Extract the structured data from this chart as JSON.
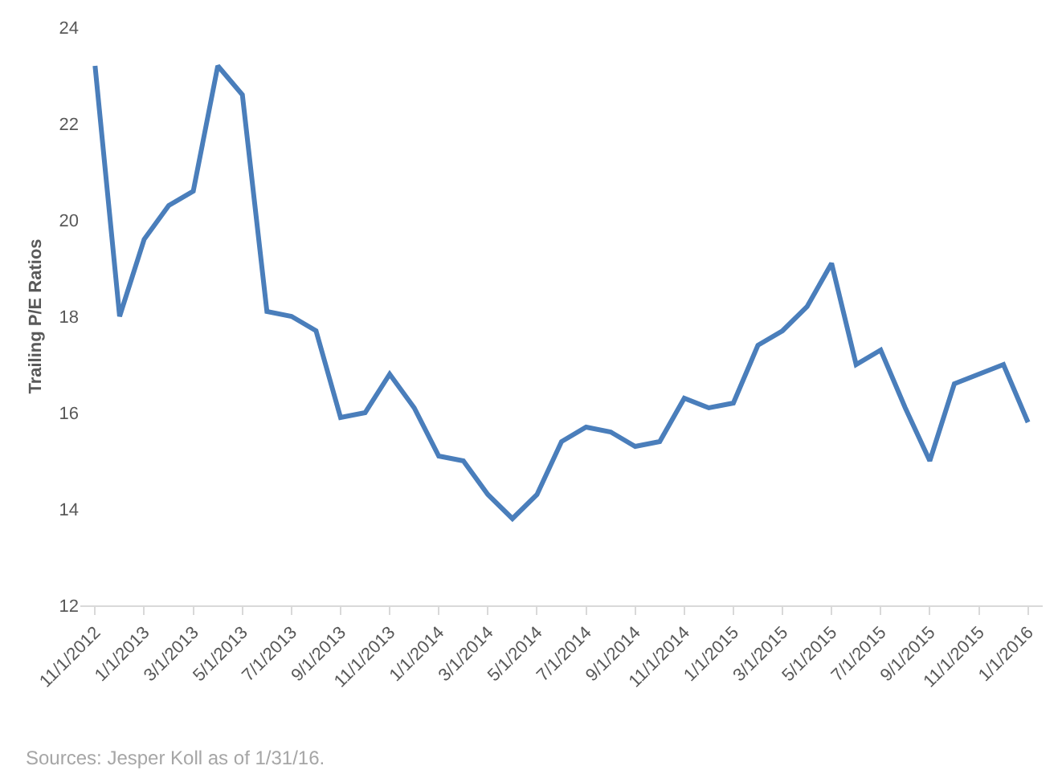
{
  "chart_data": {
    "type": "line",
    "ylabel": "Trailing P/E Ratios",
    "categories": [
      "11/1/2012",
      null,
      "1/1/2013",
      null,
      "3/1/2013",
      null,
      "5/1/2013",
      null,
      "7/1/2013",
      null,
      "9/1/2013",
      null,
      "11/1/2013",
      null,
      "1/1/2014",
      null,
      "3/1/2014",
      null,
      "5/1/2014",
      null,
      "7/1/2014",
      null,
      "9/1/2014",
      null,
      "11/1/2014",
      null,
      "1/1/2015",
      null,
      "3/1/2015",
      null,
      "5/1/2015",
      null,
      "7/1/2015",
      null,
      "9/1/2015",
      null,
      "11/1/2015",
      null,
      "1/1/2016"
    ],
    "series": [
      {
        "color": "#4a7ebb",
        "values": [
          23.2,
          18.0,
          19.6,
          20.3,
          20.6,
          23.2,
          22.6,
          18.1,
          18.0,
          17.7,
          15.9,
          16.0,
          16.8,
          16.1,
          15.1,
          15.0,
          14.3,
          13.8,
          14.3,
          15.4,
          15.7,
          15.6,
          15.3,
          15.4,
          16.3,
          16.1,
          16.2,
          17.4,
          17.7,
          18.2,
          19.1,
          17.0,
          17.3,
          16.1,
          15.0,
          16.6,
          16.8,
          17.0,
          15.8
        ]
      }
    ],
    "ylim": [
      12,
      24
    ],
    "yticks": [
      12,
      14,
      16,
      18,
      20,
      22,
      24
    ],
    "grid": false,
    "marker": "none",
    "line_style": "solid",
    "annotations": [
      "Sources: Jesper Koll as of 1/31/16."
    ]
  }
}
